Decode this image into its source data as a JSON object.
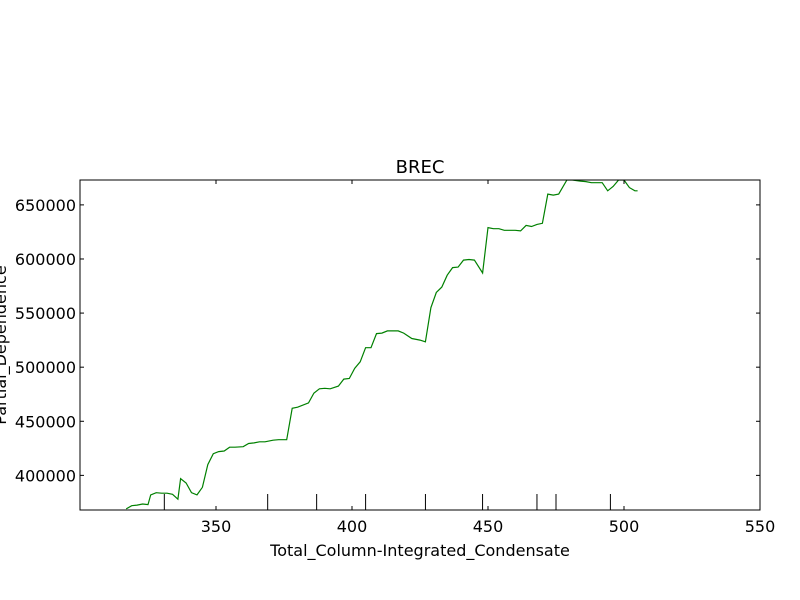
{
  "chart_data": {
    "type": "line",
    "title": "BREC",
    "xlabel": "Total_Column-Integrated_Condensate",
    "ylabel": "Partial_Dependence",
    "xlim": [
      300,
      550
    ],
    "ylim": [
      368000,
      673000
    ],
    "x_ticks": [
      350,
      400,
      450,
      500,
      550
    ],
    "y_ticks": [
      400000,
      450000,
      500000,
      550000,
      600000,
      650000
    ],
    "x_tick_labels": [
      "350",
      "400",
      "450",
      "500",
      "550"
    ],
    "y_tick_labels": [
      "400000",
      "450000",
      "500000",
      "550000",
      "600000",
      "650000"
    ],
    "rug_ticks": [
      331,
      369,
      387,
      405,
      427,
      448,
      468,
      475,
      495
    ],
    "grid": false,
    "series": [
      {
        "color": "#008000",
        "x": [
          317,
          319,
          321,
          323,
          325,
          326,
          328,
          330,
          332,
          334,
          336,
          337,
          339,
          341,
          343,
          345,
          347,
          349,
          351,
          353,
          355,
          357,
          360,
          362,
          364,
          366,
          368,
          371,
          373,
          376,
          378,
          380,
          384,
          386,
          388,
          390,
          392,
          395,
          397,
          399,
          401,
          403,
          405,
          407,
          409,
          411,
          413,
          415,
          417,
          419,
          422,
          425,
          427,
          429,
          431,
          433,
          435,
          437,
          439,
          441,
          443,
          445,
          448,
          450,
          452,
          454,
          456,
          458,
          460,
          462,
          464,
          466,
          468,
          470,
          472,
          474,
          476,
          479,
          481,
          484,
          486,
          488,
          490,
          492,
          494,
          496,
          498,
          500,
          502,
          504,
          505
        ],
        "y": [
          369000,
          372000,
          372500,
          373500,
          373000,
          382000,
          384000,
          383500,
          383500,
          382500,
          378000,
          397000,
          393000,
          384000,
          382000,
          389000,
          410000,
          420000,
          422000,
          422500,
          426000,
          426000,
          426500,
          429500,
          430000,
          431000,
          431000,
          432500,
          433000,
          433000,
          462000,
          463000,
          467000,
          476000,
          480000,
          480500,
          480000,
          482500,
          489000,
          489500,
          499000,
          505000,
          518000,
          518000,
          531000,
          531500,
          533500,
          533500,
          533500,
          531500,
          526500,
          525000,
          523500,
          555000,
          569000,
          574000,
          585000,
          592000,
          592500,
          599000,
          599500,
          599000,
          587000,
          629000,
          628000,
          628000,
          626500,
          626500,
          626500,
          626000,
          631000,
          630000,
          632000,
          633000,
          660000,
          659000,
          660000,
          673000,
          673000,
          672000,
          671500,
          670500,
          670500,
          670500,
          663000,
          667000,
          673000,
          673000,
          666000,
          663000,
          663000
        ]
      }
    ]
  }
}
